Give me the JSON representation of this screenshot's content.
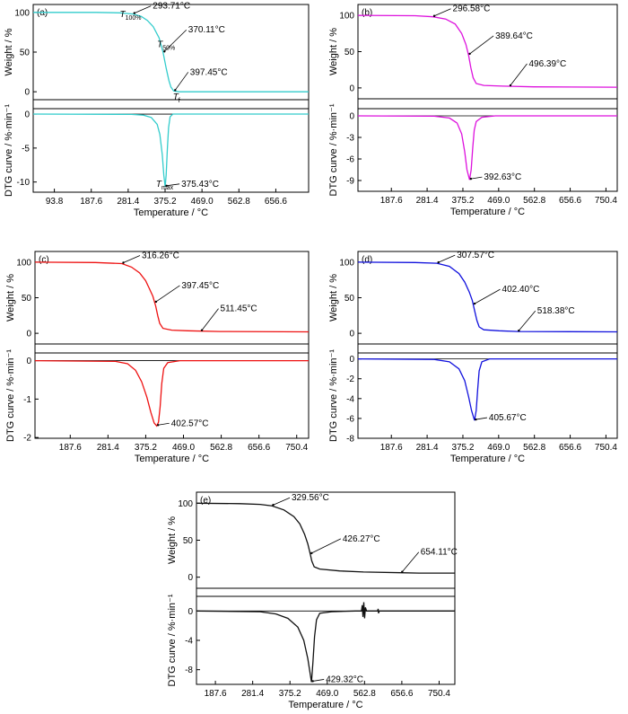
{
  "chart_data": [
    {
      "type": "line",
      "panel_label": "(a)",
      "color": "#33cccc",
      "xlim": [
        40,
        740
      ],
      "xticks": [
        93.8,
        187.6,
        281.4,
        375.2,
        469.0,
        562.8,
        656.6
      ],
      "tick_labels": [
        "93.8",
        "187.6",
        "281.4",
        "375.2",
        "469.0",
        "562.8",
        "656.6"
      ],
      "xlabel": "Temperature / °C",
      "weight": {
        "ylabel": "Weight / %",
        "ylim": [
          -10,
          110
        ],
        "yticks": [
          0,
          50,
          100
        ],
        "points": [
          [
            40,
            100
          ],
          [
            200,
            100
          ],
          [
            260,
            99.5
          ],
          [
            294,
            98
          ],
          [
            315,
            95
          ],
          [
            330,
            90
          ],
          [
            345,
            82
          ],
          [
            360,
            68
          ],
          [
            370,
            50
          ],
          [
            378,
            30
          ],
          [
            385,
            14
          ],
          [
            390,
            6
          ],
          [
            397,
            1
          ],
          [
            410,
            0
          ],
          [
            740,
            0
          ]
        ]
      },
      "dtg": {
        "ylabel": "DTG curve / %·min⁻¹",
        "ylim": [
          -11.5,
          0.8
        ],
        "yticks": [
          -10,
          -5,
          0
        ],
        "points": [
          [
            40,
            0
          ],
          [
            290,
            -0.05
          ],
          [
            320,
            -0.15
          ],
          [
            340,
            -0.5
          ],
          [
            355,
            -1.5
          ],
          [
            362,
            -3
          ],
          [
            368,
            -6
          ],
          [
            372,
            -9
          ],
          [
            375.4,
            -10.7
          ],
          [
            378,
            -9
          ],
          [
            381,
            -5
          ],
          [
            384,
            -2
          ],
          [
            388,
            -0.4
          ],
          [
            395,
            0
          ],
          [
            740,
            0
          ]
        ]
      },
      "annotations": [
        {
          "label": "293.71°C",
          "x": 293.71,
          "curve": "weight"
        },
        {
          "label": "370.11°C",
          "x": 370.11,
          "curve": "weight"
        },
        {
          "label": "397.45°C",
          "x": 397.45,
          "curve": "weight"
        },
        {
          "label": "375.43°C",
          "x": 375.43,
          "curve": "dtg"
        }
      ],
      "symbols": [
        {
          "base": "T",
          "sub": "100%",
          "x": 260,
          "y": 94
        },
        {
          "base": "T",
          "sub": "50%",
          "x": 355,
          "y": 56
        },
        {
          "base": "T",
          "sub": "f",
          "x": 395,
          "y": -10
        },
        {
          "base": "T",
          "sub": "max",
          "x": 352,
          "y": -10.7
        }
      ]
    },
    {
      "type": "line",
      "panel_label": "(b)",
      "color": "#dd11dd",
      "xlim": [
        100,
        780
      ],
      "xticks": [
        187.6,
        281.4,
        375.2,
        469.0,
        562.8,
        656.6,
        750.4
      ],
      "tick_labels": [
        "187.6",
        "281.4",
        "375.2",
        "469.0",
        "562.8",
        "656.6",
        "750.4"
      ],
      "xlabel": "Temperature / °C",
      "weight": {
        "ylabel": "Weight / %",
        "ylim": [
          -15,
          115
        ],
        "yticks": [
          0,
          50,
          100
        ],
        "points": [
          [
            100,
            100
          ],
          [
            250,
            99.5
          ],
          [
            297,
            98
          ],
          [
            330,
            95
          ],
          [
            355,
            88
          ],
          [
            372,
            75
          ],
          [
            383,
            60
          ],
          [
            390,
            45
          ],
          [
            396,
            28
          ],
          [
            402,
            14
          ],
          [
            410,
            6
          ],
          [
            430,
            3.5
          ],
          [
            480,
            2.5
          ],
          [
            560,
            1.5
          ],
          [
            780,
            1
          ]
        ]
      },
      "dtg": {
        "ylabel": "DTG curve / %·min⁻¹",
        "ylim": [
          -10.5,
          1
        ],
        "yticks": [
          -9,
          -6,
          -3,
          0
        ],
        "points": [
          [
            100,
            0
          ],
          [
            300,
            -0.05
          ],
          [
            340,
            -0.3
          ],
          [
            360,
            -1
          ],
          [
            372,
            -2.5
          ],
          [
            380,
            -5
          ],
          [
            386,
            -7.5
          ],
          [
            392.6,
            -8.9
          ],
          [
            397,
            -7.5
          ],
          [
            401,
            -4.5
          ],
          [
            405,
            -2
          ],
          [
            410,
            -0.8
          ],
          [
            425,
            -0.2
          ],
          [
            460,
            0
          ],
          [
            780,
            0
          ]
        ]
      },
      "annotations": [
        {
          "label": "296.58°C",
          "x": 296.58,
          "curve": "weight"
        },
        {
          "label": "389.64°C",
          "x": 389.64,
          "curve": "weight"
        },
        {
          "label": "496.39°C",
          "x": 496.39,
          "curve": "weight"
        },
        {
          "label": "392.63°C",
          "x": 392.63,
          "curve": "dtg"
        }
      ]
    },
    {
      "type": "line",
      "panel_label": "(c)",
      "color": "#ee1111",
      "xlim": [
        100,
        780
      ],
      "xticks": [
        187.6,
        281.4,
        375.2,
        469.0,
        562.8,
        656.6,
        750.4
      ],
      "tick_labels": [
        "187.6",
        "281.4",
        "375.2",
        "469.0",
        "562.8",
        "656.6",
        "750.4"
      ],
      "xlabel": "Temperature / °C",
      "weight": {
        "ylabel": "Weight / %",
        "ylim": [
          -15,
          115
        ],
        "yticks": [
          0,
          50,
          100
        ],
        "points": [
          [
            100,
            100
          ],
          [
            250,
            99.5
          ],
          [
            316,
            98
          ],
          [
            340,
            93
          ],
          [
            360,
            85
          ],
          [
            375,
            74
          ],
          [
            385,
            62
          ],
          [
            393,
            52
          ],
          [
            400,
            38
          ],
          [
            405,
            25
          ],
          [
            410,
            14
          ],
          [
            418,
            7
          ],
          [
            440,
            4.5
          ],
          [
            480,
            3.5
          ],
          [
            560,
            2.5
          ],
          [
            780,
            2
          ]
        ]
      },
      "dtg": {
        "ylabel": "DTG curve / %·min⁻¹",
        "ylim": [
          -2.02,
          0.2
        ],
        "yticks": [
          -2,
          -1,
          0
        ],
        "points": [
          [
            100,
            0
          ],
          [
            300,
            -0.02
          ],
          [
            330,
            -0.08
          ],
          [
            350,
            -0.25
          ],
          [
            365,
            -0.55
          ],
          [
            378,
            -0.95
          ],
          [
            388,
            -1.35
          ],
          [
            396,
            -1.62
          ],
          [
            402.6,
            -1.7
          ],
          [
            407,
            -1.6
          ],
          [
            411,
            -1.2
          ],
          [
            415,
            -0.6
          ],
          [
            420,
            -0.2
          ],
          [
            430,
            -0.05
          ],
          [
            460,
            0
          ],
          [
            780,
            0
          ]
        ]
      },
      "annotations": [
        {
          "label": "316.26°C",
          "x": 316.26,
          "curve": "weight"
        },
        {
          "label": "397.45°C",
          "x": 397.45,
          "curve": "weight"
        },
        {
          "label": "511.45°C",
          "x": 511.45,
          "curve": "weight"
        },
        {
          "label": "402.57°C",
          "x": 402.57,
          "curve": "dtg"
        }
      ]
    },
    {
      "type": "line",
      "panel_label": "(d)",
      "color": "#1111dd",
      "xlim": [
        100,
        780
      ],
      "xticks": [
        187.6,
        281.4,
        375.2,
        469.0,
        562.8,
        656.6,
        750.4
      ],
      "tick_labels": [
        "187.6",
        "281.4",
        "375.2",
        "469.0",
        "562.8",
        "656.6",
        "750.4"
      ],
      "xlabel": "Temperature / °C",
      "weight": {
        "ylabel": "Weight / %",
        "ylim": [
          -15,
          115
        ],
        "yticks": [
          0,
          50,
          100
        ],
        "points": [
          [
            100,
            100
          ],
          [
            250,
            99.5
          ],
          [
            307,
            98.5
          ],
          [
            340,
            94
          ],
          [
            365,
            84
          ],
          [
            380,
            72
          ],
          [
            392,
            58
          ],
          [
            400,
            46
          ],
          [
            406,
            32
          ],
          [
            412,
            18
          ],
          [
            418,
            9
          ],
          [
            430,
            5
          ],
          [
            470,
            3.5
          ],
          [
            520,
            2.5
          ],
          [
            780,
            2
          ]
        ]
      },
      "dtg": {
        "ylabel": "DTG curve / %·min⁻¹",
        "ylim": [
          -8,
          0.6
        ],
        "yticks": [
          -8,
          -6,
          -4,
          -2,
          0
        ],
        "points": [
          [
            100,
            0
          ],
          [
            300,
            -0.05
          ],
          [
            340,
            -0.3
          ],
          [
            365,
            -1
          ],
          [
            380,
            -2.2
          ],
          [
            390,
            -3.8
          ],
          [
            398,
            -5.2
          ],
          [
            405.7,
            -6.2
          ],
          [
            410,
            -5.2
          ],
          [
            414,
            -3
          ],
          [
            418,
            -1.2
          ],
          [
            425,
            -0.3
          ],
          [
            445,
            0
          ],
          [
            780,
            0
          ]
        ]
      },
      "annotations": [
        {
          "label": "307.57°C",
          "x": 307.57,
          "curve": "weight"
        },
        {
          "label": "402.40°C",
          "x": 402.4,
          "curve": "weight"
        },
        {
          "label": "518.38°C",
          "x": 518.38,
          "curve": "weight"
        },
        {
          "label": "405.67°C",
          "x": 405.67,
          "curve": "dtg"
        }
      ]
    },
    {
      "type": "line",
      "panel_label": "(e)",
      "color": "#111111",
      "xlim": [
        140,
        790
      ],
      "xticks": [
        187.6,
        281.4,
        375.2,
        469.0,
        562.8,
        656.6,
        750.4
      ],
      "tick_labels": [
        "187.6",
        "281.4",
        "375.2",
        "469.0",
        "562.8",
        "656.6",
        "750.4"
      ],
      "xlabel": "Temperature / °C",
      "weight": {
        "ylabel": "Weight / %",
        "ylim": [
          -15,
          115
        ],
        "yticks": [
          0,
          50,
          100
        ],
        "points": [
          [
            140,
            100
          ],
          [
            250,
            99.5
          ],
          [
            300,
            98.5
          ],
          [
            330,
            96.5
          ],
          [
            360,
            91
          ],
          [
            385,
            82
          ],
          [
            400,
            72
          ],
          [
            412,
            58
          ],
          [
            420,
            45
          ],
          [
            426,
            32
          ],
          [
            430,
            22
          ],
          [
            436,
            14
          ],
          [
            450,
            11
          ],
          [
            500,
            8.5
          ],
          [
            560,
            7
          ],
          [
            654,
            6
          ],
          [
            700,
            5.5
          ],
          [
            790,
            5.5
          ]
        ]
      },
      "dtg": {
        "ylabel": "DTG curve / %·min⁻¹",
        "ylim": [
          -10,
          2
        ],
        "yticks": [
          -8,
          -4,
          0
        ],
        "points": [
          [
            140,
            0
          ],
          [
            300,
            -0.1
          ],
          [
            340,
            -0.4
          ],
          [
            370,
            -1
          ],
          [
            395,
            -2.2
          ],
          [
            410,
            -4
          ],
          [
            420,
            -6.5
          ],
          [
            429.3,
            -9.7
          ],
          [
            433,
            -7
          ],
          [
            437,
            -3.5
          ],
          [
            442,
            -1.2
          ],
          [
            450,
            -0.3
          ],
          [
            480,
            -0.1
          ],
          [
            540,
            0
          ],
          [
            555,
            0
          ],
          [
            557,
            0.8
          ],
          [
            559,
            -0.8
          ],
          [
            561,
            1.2
          ],
          [
            563,
            -1
          ],
          [
            565,
            0.5
          ],
          [
            568,
            0
          ],
          [
            596,
            0
          ],
          [
            597,
            0.3
          ],
          [
            598,
            -0.3
          ],
          [
            600,
            0
          ],
          [
            790,
            0
          ]
        ]
      },
      "annotations": [
        {
          "label": "329.56°C",
          "x": 329.56,
          "curve": "weight"
        },
        {
          "label": "426.27°C",
          "x": 426.27,
          "curve": "weight"
        },
        {
          "label": "654.11°C",
          "x": 654.11,
          "curve": "weight"
        },
        {
          "label": "429.32°C",
          "x": 429.32,
          "curve": "dtg"
        }
      ]
    }
  ]
}
